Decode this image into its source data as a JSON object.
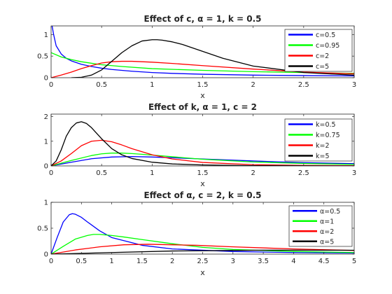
{
  "chart_data": [
    {
      "type": "line",
      "title": "Effect of c, α = 1, k = 0.5",
      "xlabel": "x",
      "ylabel": "",
      "xlim": [
        0,
        3
      ],
      "ylim": [
        0,
        1.2
      ],
      "xticks": [
        0,
        0.5,
        1,
        1.5,
        2,
        2.5,
        3
      ],
      "xtick_labels": [
        "0",
        "0.5",
        "1",
        "1.5",
        "2",
        "2.5",
        "3"
      ],
      "yticks": [
        0,
        0.5,
        1
      ],
      "ytick_labels": [
        "0",
        "0.5",
        "1"
      ],
      "grid": false,
      "legend_position": "top-right",
      "series": [
        {
          "name": "c=0.5",
          "color": "#0000ff",
          "x": [
            0.01,
            0.025,
            0.05,
            0.1,
            0.15,
            0.2,
            0.3,
            0.4,
            0.5,
            0.6,
            0.8,
            1.0,
            1.2,
            1.5,
            2.0,
            2.5,
            3.0
          ],
          "values": [
            1.2,
            1.0,
            0.74,
            0.55,
            0.45,
            0.39,
            0.31,
            0.26,
            0.22,
            0.19,
            0.15,
            0.12,
            0.1,
            0.08,
            0.06,
            0.05,
            0.04
          ]
        },
        {
          "name": "c=0.95",
          "color": "#00ff00",
          "x": [
            0,
            0.1,
            0.2,
            0.3,
            0.5,
            0.7,
            1.0,
            1.5,
            2.0,
            2.5,
            3.0
          ],
          "values": [
            0.58,
            0.48,
            0.42,
            0.37,
            0.3,
            0.26,
            0.21,
            0.17,
            0.14,
            0.12,
            0.1
          ]
        },
        {
          "name": "c=2",
          "color": "#ff0000",
          "x": [
            0,
            0.1,
            0.2,
            0.3,
            0.4,
            0.5,
            0.6,
            0.7,
            0.8,
            1.0,
            1.2,
            1.5,
            2.0,
            2.5,
            3.0
          ],
          "values": [
            0,
            0.06,
            0.13,
            0.21,
            0.28,
            0.34,
            0.37,
            0.38,
            0.38,
            0.36,
            0.33,
            0.28,
            0.2,
            0.13,
            0.09
          ]
        },
        {
          "name": "c=5",
          "color": "#000000",
          "x": [
            0.2,
            0.3,
            0.4,
            0.5,
            0.6,
            0.7,
            0.8,
            0.9,
            1.0,
            1.05,
            1.1,
            1.2,
            1.3,
            1.5,
            1.7,
            2.0,
            2.5,
            3.0
          ],
          "values": [
            0,
            0.01,
            0.06,
            0.18,
            0.38,
            0.58,
            0.74,
            0.85,
            0.88,
            0.88,
            0.87,
            0.83,
            0.77,
            0.61,
            0.45,
            0.27,
            0.12,
            0.06
          ]
        }
      ]
    },
    {
      "type": "line",
      "title": "Effect of k, α = 1, c = 2",
      "xlabel": "x",
      "ylabel": "",
      "xlim": [
        0,
        3
      ],
      "ylim": [
        0,
        2.1
      ],
      "xticks": [
        0,
        0.5,
        1,
        1.5,
        2,
        2.5,
        3
      ],
      "xtick_labels": [
        "0",
        "0.5",
        "1",
        "1.5",
        "2",
        "2.5",
        "3"
      ],
      "yticks": [
        0,
        1,
        2
      ],
      "ytick_labels": [
        "0",
        "1",
        "2"
      ],
      "grid": false,
      "legend_position": "top-right",
      "series": [
        {
          "name": "k=0.5",
          "color": "#0000ff",
          "x": [
            0,
            0.2,
            0.4,
            0.6,
            0.8,
            1.0,
            1.2,
            1.5,
            2.0,
            2.5,
            3.0
          ],
          "values": [
            0,
            0.15,
            0.29,
            0.36,
            0.38,
            0.36,
            0.33,
            0.28,
            0.2,
            0.13,
            0.09
          ]
        },
        {
          "name": "k=0.75",
          "color": "#00ff00",
          "x": [
            0,
            0.2,
            0.4,
            0.5,
            0.6,
            0.7,
            0.8,
            1.0,
            1.2,
            1.5,
            2.0,
            2.5,
            3.0
          ],
          "values": [
            0,
            0.22,
            0.42,
            0.49,
            0.52,
            0.52,
            0.5,
            0.44,
            0.37,
            0.27,
            0.16,
            0.1,
            0.06
          ]
        },
        {
          "name": "k=2",
          "color": "#ff0000",
          "x": [
            0,
            0.1,
            0.2,
            0.3,
            0.4,
            0.5,
            0.6,
            0.7,
            0.8,
            1.0,
            1.2,
            1.5,
            2.0,
            2.5,
            3.0
          ],
          "values": [
            0,
            0.2,
            0.5,
            0.82,
            1.0,
            1.04,
            0.98,
            0.85,
            0.7,
            0.45,
            0.28,
            0.14,
            0.05,
            0.02,
            0.01
          ]
        },
        {
          "name": "k=5",
          "color": "#000000",
          "x": [
            0,
            0.05,
            0.1,
            0.15,
            0.2,
            0.25,
            0.3,
            0.35,
            0.4,
            0.5,
            0.6,
            0.7,
            0.8,
            1.0,
            1.2,
            1.5,
            2.0,
            3.0
          ],
          "values": [
            0,
            0.2,
            0.65,
            1.2,
            1.55,
            1.74,
            1.79,
            1.72,
            1.55,
            1.1,
            0.7,
            0.45,
            0.3,
            0.15,
            0.08,
            0.04,
            0.01,
            0
          ]
        }
      ]
    },
    {
      "type": "line",
      "title": "Effect of α, c = 2, k = 0.5",
      "xlabel": "x",
      "ylabel": "",
      "xlim": [
        0,
        5
      ],
      "ylim": [
        0,
        1
      ],
      "xticks": [
        0,
        0.5,
        1,
        1.5,
        2,
        2.5,
        3,
        3.5,
        4,
        4.5,
        5
      ],
      "xtick_labels": [
        "0",
        "0.5",
        "1",
        "1.5",
        "2",
        "2.5",
        "3",
        "3.5",
        "4",
        "4.5",
        "5"
      ],
      "yticks": [
        0,
        0.5,
        1
      ],
      "ytick_labels": [
        "0",
        "0.5",
        "1"
      ],
      "grid": false,
      "legend_position": "top-right",
      "series": [
        {
          "name": "α=0.5",
          "color": "#0000ff",
          "x": [
            0,
            0.1,
            0.2,
            0.3,
            0.35,
            0.4,
            0.5,
            0.6,
            0.8,
            1.0,
            1.5,
            2.0,
            3.0,
            4.0,
            5.0
          ],
          "values": [
            0,
            0.32,
            0.62,
            0.76,
            0.78,
            0.77,
            0.71,
            0.62,
            0.45,
            0.32,
            0.17,
            0.1,
            0.05,
            0.03,
            0.02
          ]
        },
        {
          "name": "α=1",
          "color": "#00ff00",
          "x": [
            0,
            0.2,
            0.4,
            0.6,
            0.7,
            0.8,
            1.0,
            1.2,
            1.5,
            2.0,
            2.5,
            3.0,
            4.0,
            5.0
          ],
          "values": [
            0,
            0.15,
            0.29,
            0.36,
            0.38,
            0.38,
            0.36,
            0.33,
            0.28,
            0.2,
            0.13,
            0.09,
            0.05,
            0.03
          ]
        },
        {
          "name": "α=2",
          "color": "#ff0000",
          "x": [
            0,
            0.4,
            0.8,
            1.2,
            1.6,
            2.0,
            2.4,
            3.0,
            4.0,
            5.0
          ],
          "values": [
            0,
            0.08,
            0.14,
            0.18,
            0.19,
            0.18,
            0.17,
            0.14,
            0.1,
            0.07
          ]
        },
        {
          "name": "α=5",
          "color": "#000000",
          "x": [
            0,
            1.0,
            2.0,
            3.0,
            3.5,
            4.0,
            5.0
          ],
          "values": [
            0,
            0.03,
            0.06,
            0.07,
            0.076,
            0.076,
            0.074
          ]
        }
      ]
    }
  ]
}
